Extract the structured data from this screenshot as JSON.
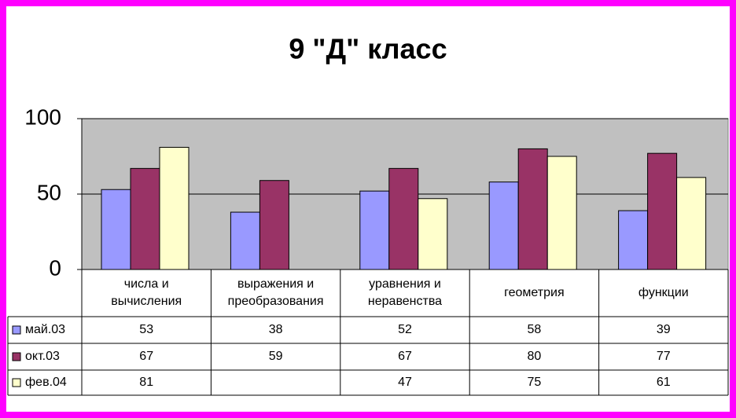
{
  "chart_data": {
    "type": "bar",
    "title": "9 \"Д\" класс",
    "categories": [
      "числа и вычисления",
      "выражения и преобразования",
      "уравнения и неравенства",
      "геометрия",
      "функции"
    ],
    "series": [
      {
        "name": "май.03",
        "color": "#9999ff",
        "values": [
          53,
          38,
          52,
          58,
          39
        ]
      },
      {
        "name": "окт.03",
        "color": "#993366",
        "values": [
          67,
          59,
          67,
          80,
          77
        ]
      },
      {
        "name": "фев.04",
        "color": "#ffffcc",
        "values": [
          81,
          null,
          47,
          75,
          61
        ]
      }
    ],
    "ylim": [
      0,
      100
    ],
    "yticks": [
      0,
      50,
      100
    ],
    "grid": true,
    "plot_background": "#c0c0c0",
    "data_table": true
  }
}
